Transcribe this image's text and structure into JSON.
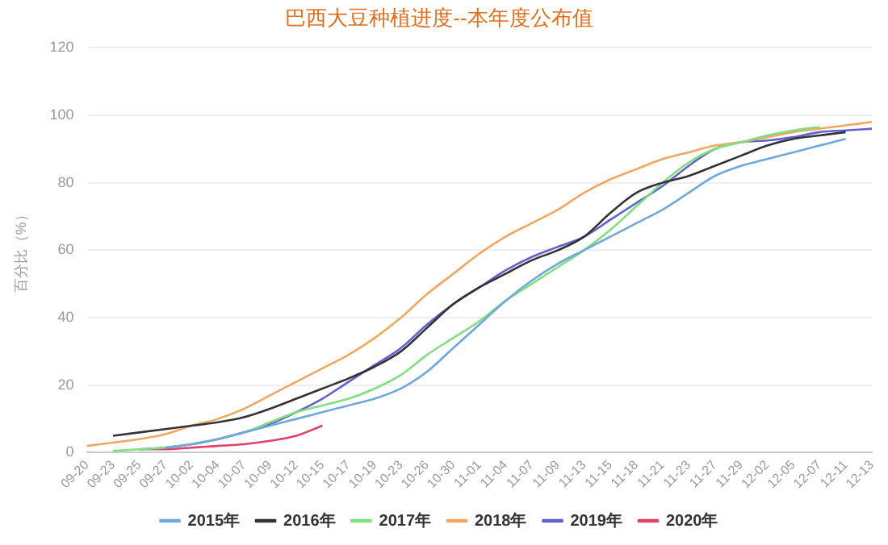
{
  "chart_data": {
    "type": "line",
    "title": "巴西大豆种植进度--本年度公布值",
    "ylabel": "百分比（%）",
    "categories": [
      "09-20",
      "09-23",
      "09-25",
      "09-27",
      "10-02",
      "10-04",
      "10-07",
      "10-09",
      "10-12",
      "10-15",
      "10-17",
      "10-19",
      "10-23",
      "10-26",
      "10-30",
      "11-01",
      "11-04",
      "11-07",
      "11-09",
      "11-13",
      "11-15",
      "11-18",
      "11-21",
      "11-23",
      "11-27",
      "11-29",
      "12-02",
      "12-05",
      "12-07",
      "12-11",
      "12-13"
    ],
    "series": [
      {
        "name": "2015年",
        "color": "#6fa8dc",
        "values": [
          null,
          null,
          null,
          1.5,
          2.5,
          4,
          6,
          8,
          10,
          12,
          14,
          16,
          19,
          24,
          31,
          38,
          45,
          51,
          56,
          60,
          64,
          68,
          72,
          77,
          82,
          85,
          87,
          89,
          91,
          93,
          null
        ]
      },
      {
        "name": "2016年",
        "color": "#333333",
        "values": [
          null,
          5,
          6,
          7,
          8,
          9,
          10.5,
          13,
          16,
          19,
          22,
          25.5,
          30,
          37,
          44,
          49,
          53,
          57,
          60,
          64,
          71,
          77,
          80,
          82,
          85,
          88,
          91,
          93,
          94,
          95,
          null
        ]
      },
      {
        "name": "2017年",
        "color": "#7ee07e",
        "values": [
          null,
          0.5,
          1,
          1.5,
          2.5,
          4,
          6,
          9,
          12,
          14,
          16,
          19,
          23,
          29,
          34,
          39,
          45,
          50,
          55,
          60,
          66,
          73,
          80,
          86,
          90,
          92,
          94,
          95.5,
          96.5,
          null,
          null
        ]
      },
      {
        "name": "2018年",
        "color": "#f0a860",
        "values": [
          2,
          3,
          4,
          5.5,
          8,
          10,
          13,
          17,
          21,
          25,
          29,
          34,
          40,
          47,
          53,
          59,
          64,
          68,
          72,
          77,
          81,
          84,
          87,
          89,
          91,
          92,
          93.5,
          95,
          96,
          97,
          98
        ]
      },
      {
        "name": "2019年",
        "color": "#6060d0",
        "values": [
          null,
          null,
          1,
          1.5,
          2.5,
          4,
          6,
          8.5,
          12,
          16,
          21,
          26,
          31,
          38,
          44,
          49,
          54,
          58,
          61,
          64,
          69,
          74,
          79,
          85,
          90,
          92,
          92.5,
          93.5,
          95,
          95.5,
          96
        ]
      },
      {
        "name": "2020年",
        "color": "#e0406a",
        "values": [
          null,
          null,
          1,
          1,
          1.5,
          2,
          2.5,
          3.5,
          5,
          8,
          null,
          null,
          null,
          null,
          null,
          null,
          null,
          null,
          null,
          null,
          null,
          null,
          null,
          null,
          null,
          null,
          null,
          null,
          null,
          null,
          null
        ]
      }
    ],
    "ylim": [
      0,
      120
    ],
    "yticks": [
      0,
      20,
      40,
      60,
      80,
      100,
      120
    ],
    "grid": "y",
    "legend": "bottom",
    "marker": "none",
    "line_style": "solid"
  }
}
